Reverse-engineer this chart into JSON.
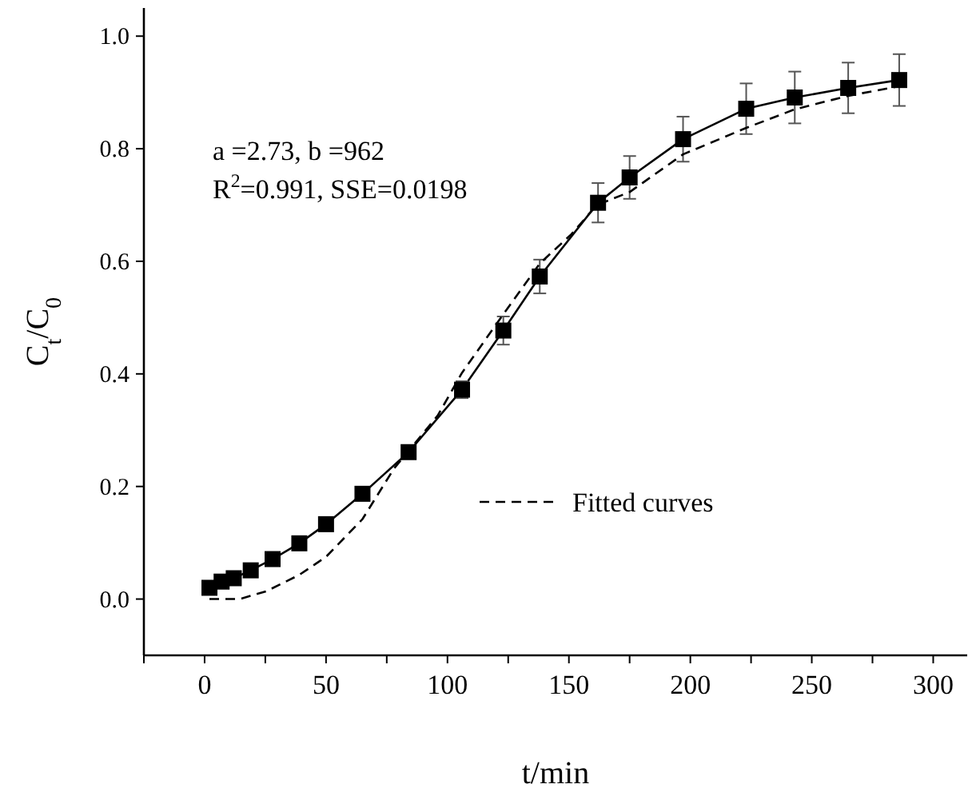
{
  "chart_data": {
    "type": "line",
    "xlabel": "t/min",
    "ylabel": "C$_{t}$/C$_{0}$",
    "xlim": [
      -25,
      314
    ],
    "ylim": [
      -0.1,
      1.05
    ],
    "xticks": [
      {
        "value": -25,
        "label": null
      },
      0,
      {
        "value": 25,
        "label": null
      },
      50,
      {
        "value": 75,
        "label": null
      },
      100,
      {
        "value": 125,
        "label": null
      },
      150,
      {
        "value": 175,
        "label": null
      },
      200,
      {
        "value": 225,
        "label": null
      },
      250,
      {
        "value": 275,
        "label": null
      },
      300
    ],
    "yticks": [
      {
        "value": 0,
        "label": "0.0"
      },
      {
        "value": 0.2,
        "label": "0.2"
      },
      {
        "value": 0.4,
        "label": "0.4"
      },
      {
        "value": 0.6,
        "label": "0.6"
      },
      {
        "value": 0.8,
        "label": "0.8"
      },
      {
        "value": 1,
        "label": "1.0"
      }
    ],
    "grid": false,
    "legend": "bottom",
    "series": [
      {
        "color": "#000000",
        "marker": "square",
        "line_style": "solid",
        "x": [
          2,
          7,
          12,
          19,
          28,
          39,
          50,
          65,
          84,
          106,
          123,
          138,
          162,
          175,
          197,
          223,
          243,
          265,
          286
        ],
        "values": [
          0.02,
          0.031,
          0.037,
          0.051,
          0.071,
          0.099,
          0.133,
          0.187,
          0.261,
          0.372,
          0.477,
          0.573,
          0.704,
          0.749,
          0.817,
          0.871,
          0.891,
          0.908,
          0.922
        ],
        "errors": [
          null,
          null,
          null,
          null,
          null,
          null,
          null,
          null,
          0.01,
          0.015,
          0.025,
          0.03,
          0.035,
          0.038,
          0.04,
          0.045,
          0.046,
          0.045,
          0.046
        ]
      },
      {
        "name": "Fitted curves",
        "color": "#000000",
        "marker": "none",
        "line_style": "dashed",
        "x": [
          2,
          14.5,
          25.5,
          39,
          50,
          65,
          78,
          96,
          106,
          123,
          138,
          151,
          161.5,
          175,
          197,
          223,
          243,
          265,
          286
        ],
        "values": [
          0.0,
          0.0,
          0.014,
          0.043,
          0.075,
          0.142,
          0.232,
          0.326,
          0.402,
          0.506,
          0.596,
          0.648,
          0.7,
          0.723,
          0.79,
          0.837,
          0.87,
          0.894,
          0.911
        ]
      }
    ],
    "annotations": [
      "a =2.73, b =962",
      "R$^{2}$=0.991, SSE=0.0198"
    ]
  }
}
